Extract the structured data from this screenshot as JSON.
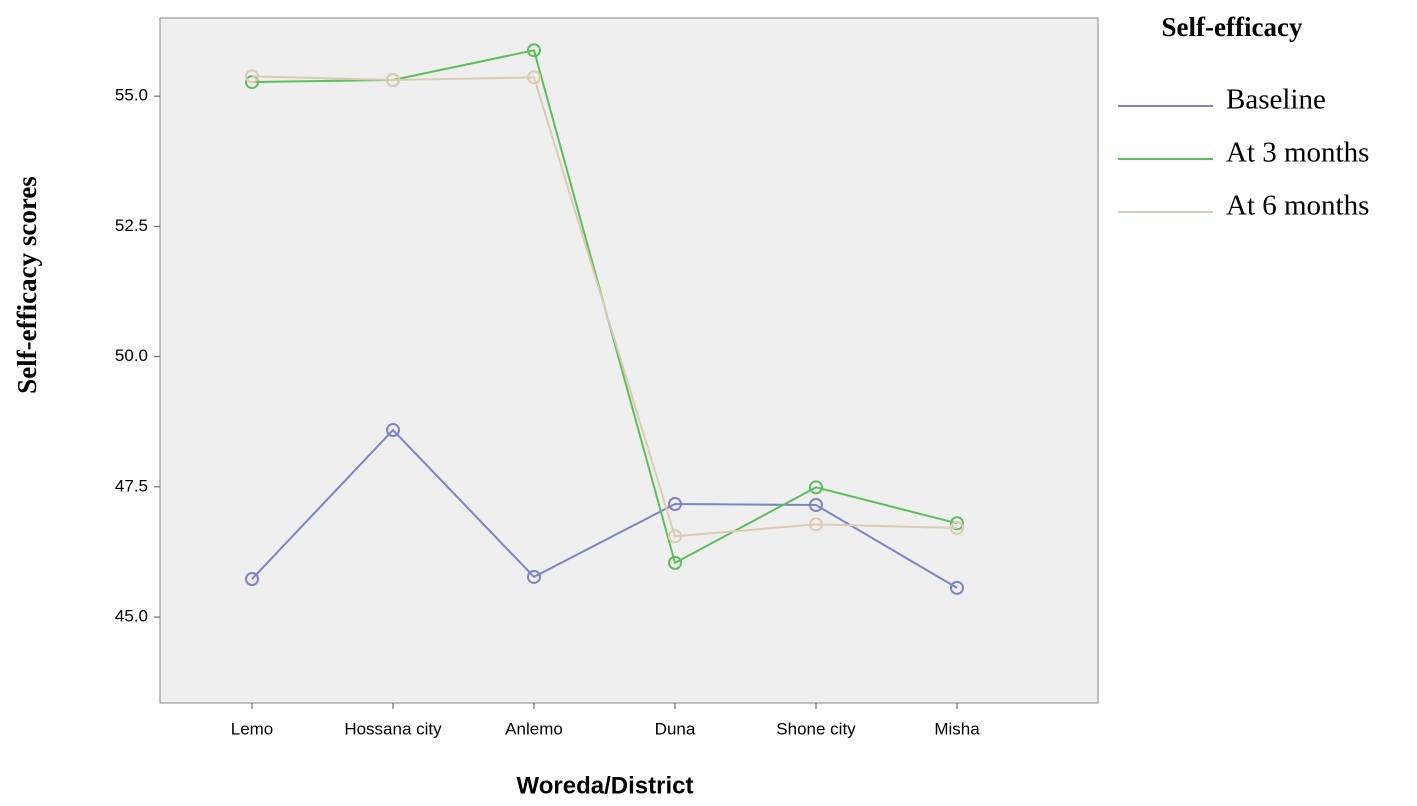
{
  "chart_data": {
    "type": "line",
    "legend_title": "Self-efficacy",
    "y_label": "Self-efficacy scores",
    "x_label": "Woreda/District",
    "categories": [
      "Lemo",
      "Hossana city",
      "Anlemo",
      "Duna",
      "Shone city",
      "Misha"
    ],
    "series": [
      {
        "name": "Baseline",
        "color": "#7b83c9",
        "values": [
          45.73,
          48.59,
          45.77,
          47.17,
          47.15,
          45.56
        ]
      },
      {
        "name": "At 3 months",
        "color": "#5cbf5c",
        "values": [
          55.27,
          55.31,
          55.88,
          46.04,
          47.49,
          46.8
        ]
      },
      {
        "name": "At 6 months",
        "color": "#dccbb4",
        "values": [
          55.38,
          55.31,
          55.36,
          46.55,
          46.78,
          46.71
        ]
      }
    ],
    "ylim": [
      43.35,
      56.5
    ],
    "yticks": [
      {
        "value": 45,
        "label": "45.0"
      },
      {
        "value": 47.5,
        "label": "47.5"
      },
      {
        "value": 50,
        "label": "50.0"
      },
      {
        "value": 52.5,
        "label": "52.5"
      },
      {
        "value": 55,
        "label": "55.0"
      }
    ],
    "grid": false,
    "legend_position": "right"
  }
}
